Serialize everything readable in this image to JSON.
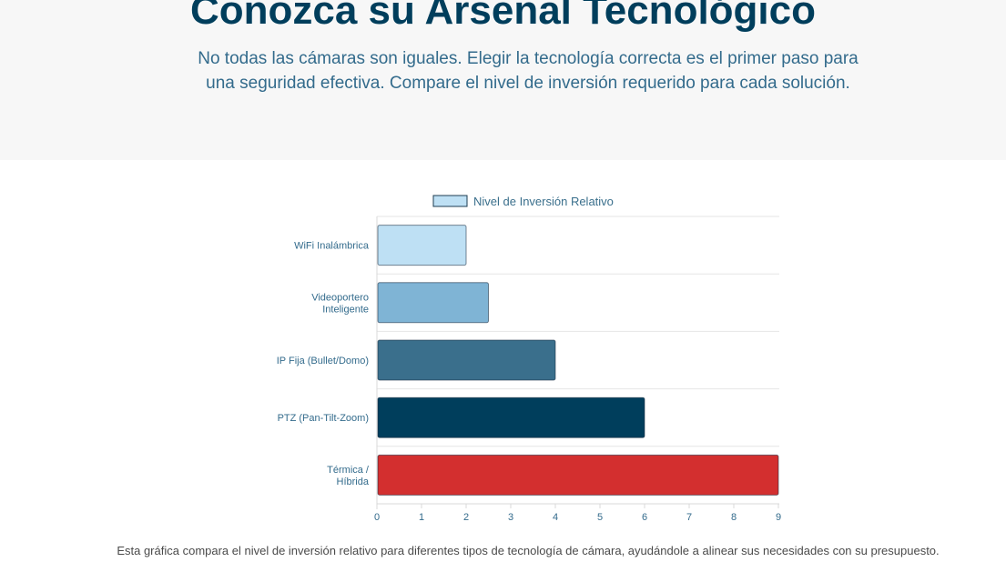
{
  "hero": {
    "title": "Conozca su Arsenal Tecnológico",
    "subtitle": "No todas las cámaras son iguales. Elegir la tecnología correcta es el primer paso para una seguridad efectiva. Compare el nivel de inversión requerido para cada solución."
  },
  "chart_data": {
    "type": "bar",
    "orientation": "horizontal",
    "categories": [
      [
        "WiFi Inalámbrica"
      ],
      [
        "Videoportero",
        "Inteligente"
      ],
      [
        "IP Fija (Bullet/Domo)"
      ],
      [
        "PTZ (Pan-Tilt-Zoom)"
      ],
      [
        "Térmica /",
        "Híbrida"
      ]
    ],
    "series": [
      {
        "name": "Nivel de Inversión Relativo",
        "values": [
          2,
          2.5,
          4,
          6,
          9
        ]
      }
    ],
    "bar_colors": [
      "#bee0f4",
      "#7fb4d5",
      "#3a6f8c",
      "#003e5c",
      "#d32f2f"
    ],
    "legend_color": "#bee0f4",
    "xlim": [
      0,
      9
    ],
    "xticks": [
      0,
      1,
      2,
      3,
      4,
      5,
      6,
      7,
      8,
      9
    ],
    "grid": "horizontal separators",
    "legend_position": "top"
  },
  "caption": "Esta gráfica compara el nivel de inversión relativo para diferentes tipos de tecnología de cámara, ayudándole a alinear sus necesidades con su presupuesto.",
  "colors": {
    "title": "#003e5c",
    "subtitle": "#336b8c",
    "axis_text": "#336b8c",
    "hero_background": "#f7f7f7"
  }
}
